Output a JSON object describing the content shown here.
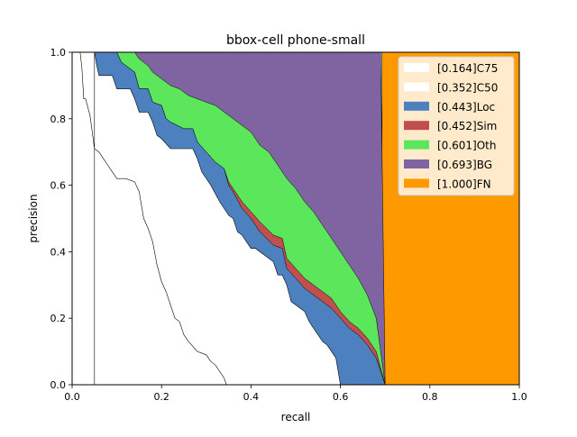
{
  "chart_data": {
    "type": "area",
    "title": "bbox-cell phone-small",
    "xlabel": "recall",
    "ylabel": "precision",
    "xlim": [
      0,
      1
    ],
    "ylim": [
      0,
      1
    ],
    "xticks": [
      "0.0",
      "0.2",
      "0.4",
      "0.6",
      "0.8",
      "1.0"
    ],
    "yticks": [
      "0.0",
      "0.2",
      "0.4",
      "0.6",
      "0.8",
      "1.0"
    ],
    "grid": false,
    "legend_position": "upper right",
    "legend": [
      {
        "label": "[0.164]C75",
        "color": "#ffffff"
      },
      {
        "label": "[0.352]C50",
        "color": "#ffffff"
      },
      {
        "label": "[0.443]Loc",
        "color": "#4c80bf"
      },
      {
        "label": "[0.452]Sim",
        "color": "#c0504d"
      },
      {
        "label": "[0.601]Oth",
        "color": "#5ce65c"
      },
      {
        "label": "[0.693]BG",
        "color": "#8064a2"
      },
      {
        "label": "[1.000]FN",
        "color": "#ff9900"
      }
    ],
    "series": [
      {
        "key": "C75",
        "color": "#ffffff",
        "x": [
          0.018,
          0.022,
          0.026,
          0.03,
          0.04,
          0.05,
          0.06,
          0.07,
          0.08,
          0.09,
          0.1,
          0.11,
          0.12,
          0.14,
          0.15,
          0.16,
          0.17,
          0.18,
          0.19,
          0.2,
          0.21,
          0.22,
          0.23,
          0.24,
          0.25,
          0.26,
          0.28,
          0.3,
          0.31,
          0.32,
          0.33,
          0.34,
          0.345
        ],
        "y": [
          1.0,
          0.95,
          0.86,
          0.86,
          0.81,
          0.71,
          0.7,
          0.68,
          0.66,
          0.64,
          0.62,
          0.62,
          0.62,
          0.61,
          0.58,
          0.5,
          0.47,
          0.43,
          0.36,
          0.31,
          0.28,
          0.24,
          0.2,
          0.19,
          0.15,
          0.13,
          0.1,
          0.09,
          0.07,
          0.06,
          0.04,
          0.02,
          0.0
        ]
      },
      {
        "key": "C50",
        "color": "#ffffff",
        "x": [
          0.05,
          0.06,
          0.07,
          0.08,
          0.09,
          0.1,
          0.11,
          0.12,
          0.13,
          0.14,
          0.15,
          0.16,
          0.17,
          0.18,
          0.19,
          0.2,
          0.22,
          0.24,
          0.26,
          0.28,
          0.3,
          0.32,
          0.34,
          0.36,
          0.38,
          0.4,
          0.42,
          0.44,
          0.46,
          0.48,
          0.5,
          0.52,
          0.54,
          0.56,
          0.58,
          0.6
        ],
        "y": [
          1.0,
          1.0,
          1.0,
          1.0,
          1.0,
          1.0,
          1.0,
          1.0,
          1.0,
          1.0,
          1.0,
          1.0,
          1.0,
          1.0,
          1.0,
          1.0,
          1.0,
          1.0,
          1.0,
          1.0,
          1.0,
          1.0,
          1.0,
          1.0,
          1.0,
          1.0,
          1.0,
          1.0,
          1.0,
          1.0,
          1.0,
          1.0,
          1.0,
          1.0,
          1.0,
          1.0
        ]
      },
      {
        "key": "Loc",
        "color": "#4c80bf",
        "x": [
          0.05,
          0.055,
          0.06,
          0.09,
          0.1,
          0.13,
          0.14,
          0.15,
          0.17,
          0.18,
          0.19,
          0.2,
          0.22,
          0.23,
          0.27,
          0.28,
          0.29,
          0.31,
          0.33,
          0.35,
          0.36,
          0.37,
          0.38,
          0.39,
          0.4,
          0.41,
          0.43,
          0.45,
          0.46,
          0.47,
          0.48,
          0.49,
          0.5,
          0.51,
          0.52,
          0.53,
          0.54,
          0.55,
          0.56,
          0.57,
          0.58,
          0.59,
          0.6
        ],
        "y": [
          1.0,
          0.96,
          0.93,
          0.93,
          0.89,
          0.89,
          0.86,
          0.82,
          0.82,
          0.79,
          0.75,
          0.74,
          0.71,
          0.71,
          0.71,
          0.68,
          0.64,
          0.6,
          0.55,
          0.51,
          0.5,
          0.46,
          0.45,
          0.43,
          0.41,
          0.41,
          0.39,
          0.37,
          0.33,
          0.33,
          0.3,
          0.25,
          0.24,
          0.23,
          0.22,
          0.19,
          0.17,
          0.15,
          0.13,
          0.12,
          0.1,
          0.08,
          0.0
        ]
      },
      {
        "key": "Loc_top",
        "color": "#4c80bf",
        "x": [
          0.05,
          0.1,
          0.11,
          0.14,
          0.15,
          0.17,
          0.18,
          0.2,
          0.21,
          0.22,
          0.25,
          0.27,
          0.28,
          0.3,
          0.32,
          0.34,
          0.35,
          0.36,
          0.38,
          0.4,
          0.42,
          0.45,
          0.47,
          0.48,
          0.5,
          0.52,
          0.54,
          0.56,
          0.58,
          0.6,
          0.62,
          0.64,
          0.66,
          0.68,
          0.7
        ],
        "y": [
          1.0,
          1.0,
          0.97,
          0.94,
          0.89,
          0.89,
          0.85,
          0.84,
          0.8,
          0.79,
          0.77,
          0.77,
          0.73,
          0.7,
          0.67,
          0.65,
          0.6,
          0.58,
          0.53,
          0.5,
          0.46,
          0.42,
          0.41,
          0.35,
          0.32,
          0.29,
          0.27,
          0.25,
          0.23,
          0.2,
          0.17,
          0.15,
          0.12,
          0.08,
          0.0
        ]
      },
      {
        "key": "Sim_top",
        "color": "#c0504d",
        "x": [
          0.05,
          0.1,
          0.11,
          0.14,
          0.15,
          0.17,
          0.18,
          0.2,
          0.21,
          0.22,
          0.25,
          0.27,
          0.28,
          0.3,
          0.32,
          0.34,
          0.35,
          0.36,
          0.38,
          0.4,
          0.42,
          0.45,
          0.47,
          0.48,
          0.5,
          0.52,
          0.54,
          0.56,
          0.58,
          0.6,
          0.62,
          0.64,
          0.66,
          0.68,
          0.7
        ],
        "y": [
          1.0,
          1.0,
          0.97,
          0.94,
          0.89,
          0.89,
          0.85,
          0.84,
          0.8,
          0.79,
          0.77,
          0.77,
          0.73,
          0.7,
          0.67,
          0.65,
          0.61,
          0.59,
          0.55,
          0.52,
          0.49,
          0.45,
          0.44,
          0.38,
          0.35,
          0.32,
          0.3,
          0.28,
          0.26,
          0.22,
          0.19,
          0.17,
          0.14,
          0.1,
          0.0
        ]
      },
      {
        "key": "Oth_top",
        "color": "#5ce65c",
        "x": [
          0.05,
          0.1,
          0.11,
          0.14,
          0.15,
          0.17,
          0.18,
          0.2,
          0.22,
          0.24,
          0.26,
          0.28,
          0.3,
          0.32,
          0.34,
          0.36,
          0.38,
          0.4,
          0.42,
          0.44,
          0.46,
          0.48,
          0.5,
          0.52,
          0.54,
          0.56,
          0.58,
          0.6,
          0.62,
          0.64,
          0.66,
          0.68,
          0.7
        ],
        "y": [
          1.0,
          1.0,
          1.0,
          1.0,
          0.98,
          0.96,
          0.94,
          0.92,
          0.9,
          0.89,
          0.87,
          0.86,
          0.85,
          0.84,
          0.82,
          0.8,
          0.78,
          0.76,
          0.72,
          0.7,
          0.66,
          0.62,
          0.59,
          0.55,
          0.52,
          0.48,
          0.44,
          0.4,
          0.36,
          0.32,
          0.27,
          0.2,
          0.0
        ]
      },
      {
        "key": "BG_top",
        "color": "#8064a2",
        "x": [
          0.05,
          0.68,
          0.69,
          0.7
        ],
        "y": [
          1.0,
          1.0,
          1.0,
          0.0
        ]
      }
    ],
    "fn": {
      "x_start": 0.693,
      "x_end": 1.0,
      "color": "#ff9900"
    }
  }
}
